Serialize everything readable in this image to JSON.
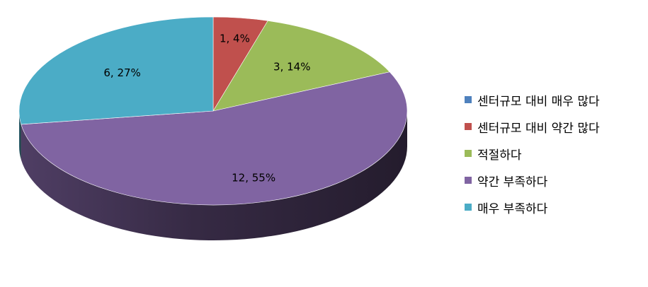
{
  "chart_data": {
    "type": "pie",
    "title": "",
    "legend_position": "right",
    "slices": [
      {
        "name": "센터규모 대비 매우 많다",
        "value": 0,
        "percent": 0,
        "label": "",
        "color": "#4F81BD"
      },
      {
        "name": "센터규모 대비 약간 많다",
        "value": 1,
        "percent": 4,
        "label": "1, 4%",
        "color": "#C0504D"
      },
      {
        "name": "적절하다",
        "value": 3,
        "percent": 14,
        "label": "3, 14%",
        "color": "#9BBB59"
      },
      {
        "name": "약간 부족하다",
        "value": 12,
        "percent": 55,
        "label": "12, 55%",
        "color": "#8064A2"
      },
      {
        "name": "매우 부족하다",
        "value": 6,
        "percent": 27,
        "label": "6, 27%",
        "color": "#4BACC6"
      }
    ]
  }
}
